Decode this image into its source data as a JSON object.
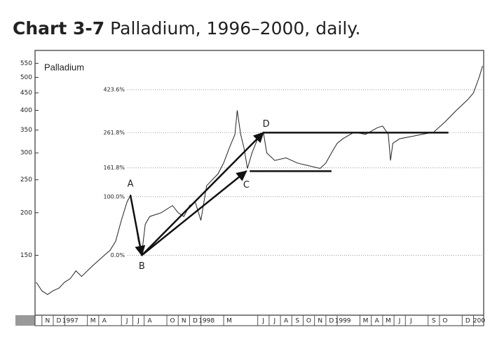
{
  "chart_data": {
    "type": "line",
    "title_label": "Chart 3-7",
    "title": "Palladium, 1996–2000, daily.",
    "legend_text": "Palladium",
    "log_scale": true,
    "series": [
      {
        "name": "Palladium",
        "color": "#222222",
        "x": [
          -1,
          -0.5,
          0,
          0.5,
          1,
          1.5,
          2,
          2.5,
          3,
          4,
          5,
          5.5,
          6,
          6.5,
          7,
          7.3,
          7.6,
          8,
          8.3,
          8.6,
          9,
          10,
          11,
          11.5,
          12,
          12.5,
          13,
          13.5,
          14,
          14.5,
          15,
          15.5,
          16,
          16.5,
          16.7,
          17,
          17.3,
          17.6,
          18,
          18.5,
          19,
          19.3,
          20,
          21,
          22,
          23,
          24,
          24.5,
          25,
          25.5,
          26,
          27,
          28,
          29,
          29.5,
          30,
          30.2,
          30.4,
          31,
          32,
          33,
          34,
          35,
          36,
          37,
          37.5,
          38,
          38.3
        ],
        "values": [
          125,
          118,
          115,
          118,
          120,
          125,
          128,
          135,
          130,
          140,
          150,
          155,
          165,
          190,
          215,
          225,
          200,
          165,
          152,
          185,
          195,
          200,
          210,
          200,
          195,
          210,
          215,
          190,
          240,
          250,
          260,
          280,
          310,
          340,
          400,
          340,
          310,
          270,
          300,
          330,
          345,
          300,
          285,
          290,
          280,
          275,
          270,
          280,
          300,
          320,
          330,
          345,
          340,
          355,
          360,
          340,
          285,
          320,
          330,
          335,
          340,
          345,
          370,
          400,
          430,
          450,
          500,
          540
        ]
      }
    ],
    "xlim": [
      -1.1,
      38.4
    ],
    "xticks": [
      {
        "value": 0,
        "label": "N"
      },
      {
        "value": 1,
        "label": "D"
      },
      {
        "value": 2,
        "label": "1997"
      },
      {
        "value": 4,
        "label": "M"
      },
      {
        "value": 5,
        "label": "A"
      },
      {
        "value": 7,
        "label": "J"
      },
      {
        "value": 8,
        "label": "J"
      },
      {
        "value": 9,
        "label": "A"
      },
      {
        "value": 11,
        "label": "O"
      },
      {
        "value": 12,
        "label": "N"
      },
      {
        "value": 13,
        "label": "D"
      },
      {
        "value": 14,
        "label": "1998"
      },
      {
        "value": 16,
        "label": "M"
      },
      {
        "value": 19,
        "label": "J"
      },
      {
        "value": 20,
        "label": "J"
      },
      {
        "value": 21,
        "label": "A"
      },
      {
        "value": 22,
        "label": "S"
      },
      {
        "value": 23,
        "label": "O"
      },
      {
        "value": 24,
        "label": "N"
      },
      {
        "value": 25,
        "label": "D"
      },
      {
        "value": 26,
        "label": "1999"
      },
      {
        "value": 28,
        "label": "M"
      },
      {
        "value": 29,
        "label": "A"
      },
      {
        "value": 30,
        "label": "M"
      },
      {
        "value": 31,
        "label": "J"
      },
      {
        "value": 32,
        "label": "J"
      },
      {
        "value": 34,
        "label": "S"
      },
      {
        "value": 35,
        "label": "O"
      },
      {
        "value": 37,
        "label": "D"
      },
      {
        "value": 38,
        "label": "200"
      }
    ],
    "ylim": [
      100,
      600
    ],
    "yticks": [
      150,
      200,
      250,
      300,
      350,
      400,
      450,
      500,
      550
    ],
    "fib_levels": [
      {
        "label": "0.0%",
        "value": 150
      },
      {
        "label": "100.0%",
        "value": 223
      },
      {
        "label": "161.8%",
        "value": 271
      },
      {
        "label": "261.8%",
        "value": 344
      },
      {
        "label": "423.6%",
        "value": 460
      }
    ],
    "points": [
      {
        "label": "A",
        "x": 7.3,
        "value": 225
      },
      {
        "label": "B",
        "x": 8.3,
        "value": 150
      },
      {
        "label": "C",
        "x": 17.5,
        "value": 265
      },
      {
        "label": "D",
        "x": 19,
        "value": 344
      }
    ],
    "levels": [
      {
        "x": [
          19,
          35.3
        ],
        "value": 344
      },
      {
        "x": [
          17.8,
          25
        ],
        "value": 265
      }
    ]
  }
}
